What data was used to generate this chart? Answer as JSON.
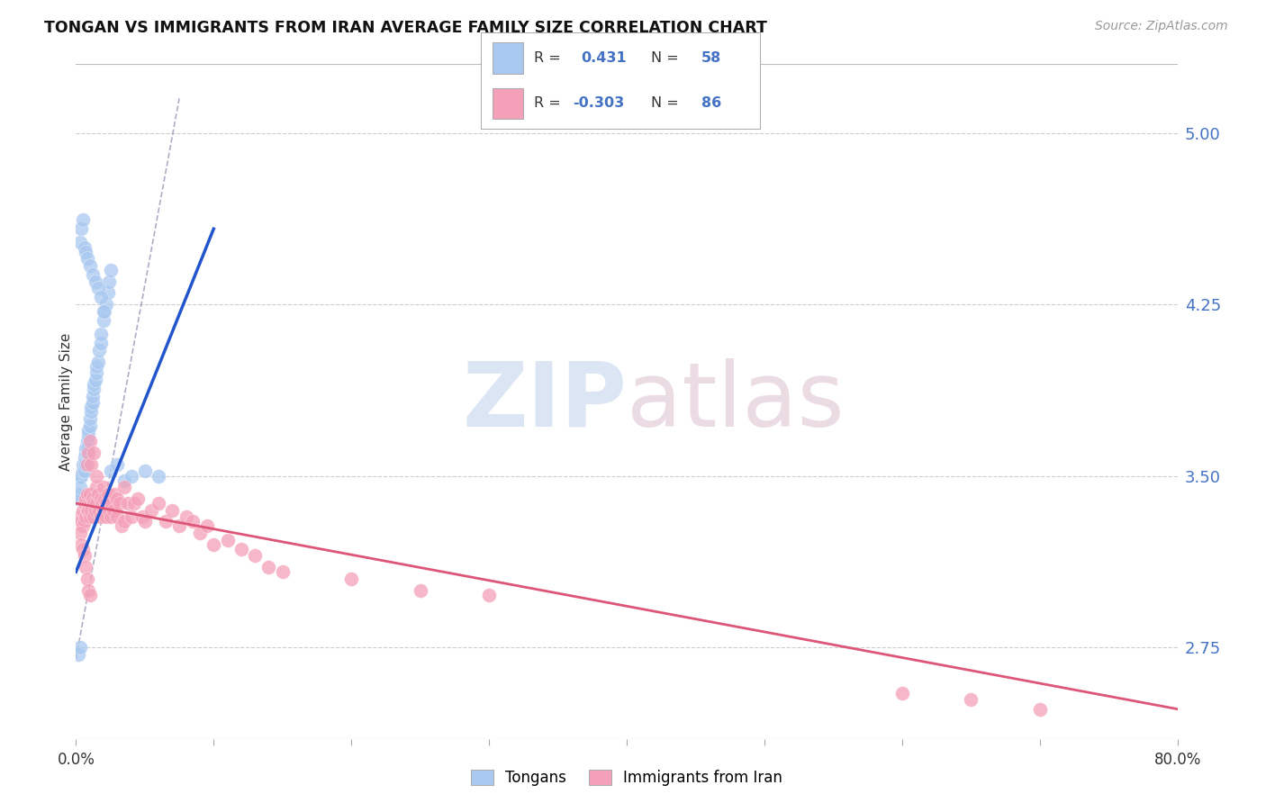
{
  "title": "TONGAN VS IMMIGRANTS FROM IRAN AVERAGE FAMILY SIZE CORRELATION CHART",
  "source": "Source: ZipAtlas.com",
  "ylabel": "Average Family Size",
  "yticks": [
    2.75,
    3.5,
    4.25,
    5.0
  ],
  "ytick_labels": [
    "2.75",
    "3.50",
    "4.25",
    "5.00"
  ],
  "legend_r1": "R =  0.431",
  "legend_n1": "N = 58",
  "legend_r2": "R = -0.303",
  "legend_n2": "N = 86",
  "legend_label1": "Tongans",
  "legend_label2": "Immigrants from Iran",
  "blue_color": "#a8c8f0",
  "pink_color": "#f4a0b8",
  "trendline_blue": "#2255cc",
  "trendline_pink": "#dd5577",
  "trendline_dashed_color": "#9999bb",
  "xmin": 0.0,
  "xmax": 0.8,
  "ymin": 2.35,
  "ymax": 5.3,
  "blue_trendline_x": [
    0.0,
    0.1
  ],
  "blue_trendline_y": [
    3.08,
    4.58
  ],
  "pink_trendline_x": [
    0.0,
    0.8
  ],
  "pink_trendline_y": [
    3.38,
    2.48
  ],
  "dashed_line_x": [
    0.0,
    0.075
  ],
  "dashed_line_y": [
    2.7,
    5.15
  ],
  "blue_x": [
    0.003,
    0.004,
    0.005,
    0.005,
    0.006,
    0.006,
    0.007,
    0.007,
    0.007,
    0.008,
    0.008,
    0.008,
    0.009,
    0.009,
    0.01,
    0.01,
    0.011,
    0.011,
    0.012,
    0.012,
    0.013,
    0.013,
    0.014,
    0.015,
    0.015,
    0.016,
    0.017,
    0.018,
    0.018,
    0.02,
    0.021,
    0.022,
    0.023,
    0.024,
    0.025,
    0.003,
    0.004,
    0.005,
    0.006,
    0.007,
    0.008,
    0.01,
    0.012,
    0.014,
    0.016,
    0.018,
    0.02,
    0.025,
    0.03,
    0.035,
    0.04,
    0.05,
    0.06,
    0.001,
    0.002,
    0.003,
    0.002,
    0.003
  ],
  "blue_y": [
    3.5,
    3.5,
    3.52,
    3.55,
    3.52,
    3.58,
    3.55,
    3.6,
    3.62,
    3.6,
    3.65,
    3.62,
    3.68,
    3.7,
    3.72,
    3.75,
    3.78,
    3.8,
    3.82,
    3.85,
    3.88,
    3.9,
    3.92,
    3.95,
    3.98,
    4.0,
    4.05,
    4.08,
    4.12,
    4.18,
    4.22,
    4.25,
    4.3,
    4.35,
    4.4,
    4.52,
    4.58,
    4.62,
    4.5,
    4.48,
    4.45,
    4.42,
    4.38,
    4.35,
    4.32,
    4.28,
    4.22,
    3.52,
    3.55,
    3.48,
    3.5,
    3.52,
    3.5,
    3.4,
    3.42,
    3.45,
    2.72,
    2.75
  ],
  "pink_x": [
    0.003,
    0.004,
    0.005,
    0.005,
    0.006,
    0.006,
    0.007,
    0.007,
    0.008,
    0.008,
    0.009,
    0.009,
    0.01,
    0.01,
    0.011,
    0.011,
    0.012,
    0.013,
    0.013,
    0.014,
    0.015,
    0.015,
    0.016,
    0.017,
    0.018,
    0.018,
    0.019,
    0.02,
    0.02,
    0.021,
    0.022,
    0.022,
    0.023,
    0.024,
    0.025,
    0.025,
    0.026,
    0.027,
    0.028,
    0.03,
    0.03,
    0.032,
    0.033,
    0.035,
    0.035,
    0.038,
    0.04,
    0.042,
    0.045,
    0.048,
    0.05,
    0.055,
    0.06,
    0.065,
    0.07,
    0.075,
    0.08,
    0.085,
    0.09,
    0.095,
    0.1,
    0.11,
    0.12,
    0.13,
    0.14,
    0.15,
    0.003,
    0.004,
    0.005,
    0.006,
    0.007,
    0.008,
    0.009,
    0.01,
    0.008,
    0.009,
    0.01,
    0.011,
    0.013,
    0.015,
    0.2,
    0.25,
    0.3,
    0.6,
    0.65,
    0.7
  ],
  "pink_y": [
    3.32,
    3.3,
    3.28,
    3.35,
    3.3,
    3.38,
    3.32,
    3.4,
    3.35,
    3.42,
    3.38,
    3.35,
    3.32,
    3.42,
    3.38,
    3.35,
    3.4,
    3.38,
    3.32,
    3.35,
    3.45,
    3.38,
    3.42,
    3.35,
    3.4,
    3.32,
    3.38,
    3.45,
    3.35,
    3.4,
    3.38,
    3.32,
    3.42,
    3.35,
    3.4,
    3.32,
    3.38,
    3.35,
    3.42,
    3.4,
    3.32,
    3.38,
    3.28,
    3.45,
    3.3,
    3.38,
    3.32,
    3.38,
    3.4,
    3.32,
    3.3,
    3.35,
    3.38,
    3.3,
    3.35,
    3.28,
    3.32,
    3.3,
    3.25,
    3.28,
    3.2,
    3.22,
    3.18,
    3.15,
    3.1,
    3.08,
    3.25,
    3.2,
    3.18,
    3.15,
    3.1,
    3.05,
    3.0,
    2.98,
    3.55,
    3.6,
    3.65,
    3.55,
    3.6,
    3.5,
    3.05,
    3.0,
    2.98,
    2.55,
    2.52,
    2.48
  ]
}
